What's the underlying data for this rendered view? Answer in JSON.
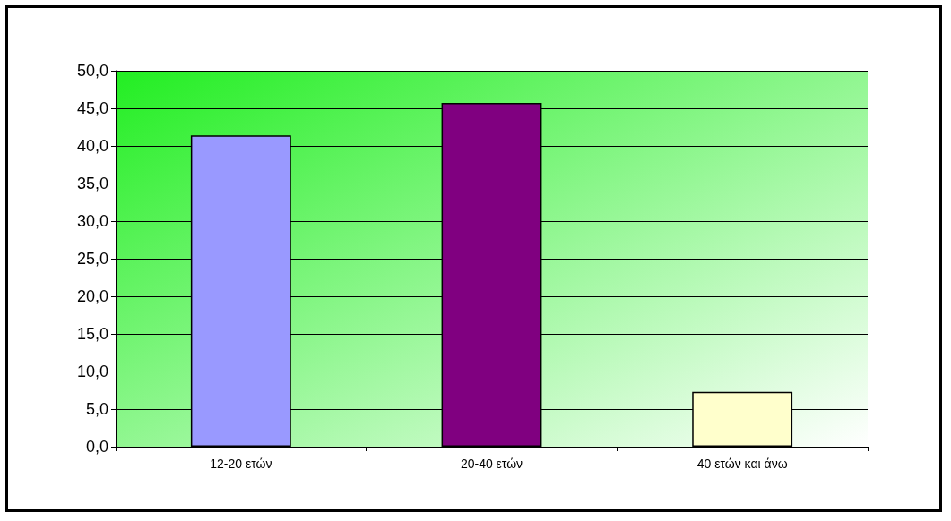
{
  "chart_data": {
    "type": "bar",
    "categories": [
      "12-20 ετών",
      "20-40 ετών",
      "40 ετών και άνω"
    ],
    "values": [
      41.4,
      45.7,
      7.3
    ],
    "colors": [
      "#9999ff",
      "#800080",
      "#ffffcc"
    ],
    "ylim": [
      0,
      50
    ],
    "yticks": [
      {
        "value": 0,
        "label": "0,0"
      },
      {
        "value": 5,
        "label": "5,0"
      },
      {
        "value": 10,
        "label": "10,0"
      },
      {
        "value": 15,
        "label": "15,0"
      },
      {
        "value": 20,
        "label": "20,0"
      },
      {
        "value": 25,
        "label": "25,0"
      },
      {
        "value": 30,
        "label": "30,0"
      },
      {
        "value": 35,
        "label": "35,0"
      },
      {
        "value": 40,
        "label": "40,0"
      },
      {
        "value": 45,
        "label": "45,0"
      },
      {
        "value": 50,
        "label": "50,0"
      }
    ],
    "grid": "y"
  }
}
